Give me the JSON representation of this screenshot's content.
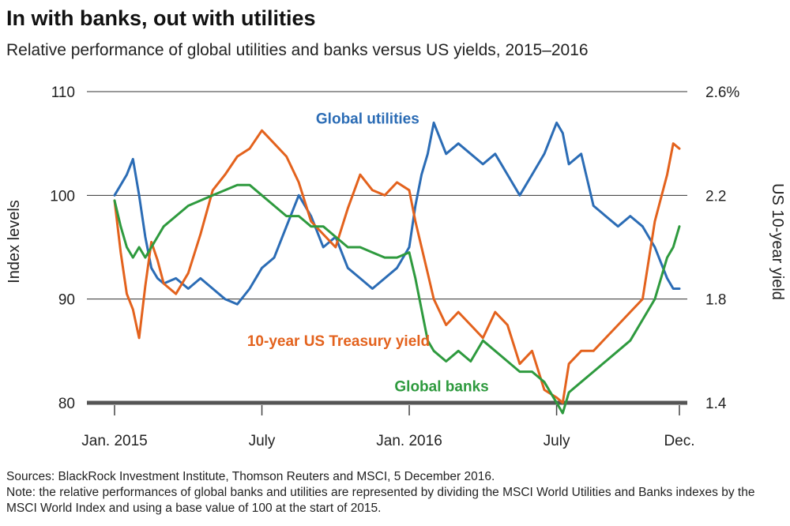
{
  "chart_data": {
    "type": "line",
    "title": "In with banks, out with utilities",
    "subtitle": "Relative performance of global utilities and banks versus US yields, 2015–2016",
    "ylabel": "Index levels",
    "ylabel_right": "US 10-year yield",
    "ylim": [
      80,
      110
    ],
    "ylim_right": [
      1.4,
      2.6
    ],
    "y_ticks": [
      "110",
      "100",
      "90",
      "80"
    ],
    "y_ticks_right": [
      "2.6%",
      "2.2",
      "1.8",
      "1.4"
    ],
    "x_ticks": [
      "Jan. 2015",
      "July",
      "Jan. 2016",
      "July",
      "Dec."
    ],
    "x_tick_values": [
      0,
      6,
      12,
      18,
      23
    ],
    "x_unit": "month index from Jan. 2015",
    "series": [
      {
        "name": "Global utilities",
        "axis": "left",
        "color": "#2b6cb5",
        "x": [
          0,
          0.25,
          0.5,
          0.75,
          1,
          1.25,
          1.5,
          1.75,
          2,
          2.5,
          3,
          3.5,
          4,
          4.5,
          5,
          5.5,
          6,
          6.5,
          7,
          7.5,
          8,
          8.5,
          9,
          9.5,
          10,
          10.5,
          11,
          11.5,
          12,
          12.25,
          12.5,
          12.75,
          13,
          13.5,
          14,
          14.5,
          15,
          15.5,
          16,
          16.5,
          17,
          17.5,
          18,
          18.25,
          18.5,
          19,
          19.5,
          20,
          20.5,
          21,
          21.5,
          22,
          22.5,
          22.75,
          23
        ],
        "y": [
          100,
          101,
          102,
          103.5,
          100,
          96,
          93,
          92,
          91.5,
          92,
          91,
          92,
          91,
          90,
          89.5,
          91,
          93,
          94,
          97,
          100,
          98,
          95,
          96,
          93,
          92,
          91,
          92,
          93,
          95,
          99,
          102,
          104,
          107,
          104,
          105,
          104,
          103,
          104,
          102,
          100,
          102,
          104,
          107,
          106,
          103,
          104,
          99,
          98,
          97,
          98,
          97,
          95,
          92,
          91,
          91
        ],
        "label_pos": [
          8.2,
          106.9
        ]
      },
      {
        "name": "10-year US Treasury yield",
        "axis": "right",
        "color": "#e3621d",
        "x": [
          0,
          0.25,
          0.5,
          0.75,
          1,
          1.25,
          1.5,
          1.75,
          2,
          2.5,
          3,
          3.5,
          4,
          4.5,
          5,
          5.5,
          6,
          6.5,
          7,
          7.5,
          8,
          8.5,
          9,
          9.5,
          10,
          10.5,
          11,
          11.5,
          12,
          12.25,
          12.5,
          12.75,
          13,
          13.5,
          14,
          14.5,
          15,
          15.5,
          16,
          16.5,
          17,
          17.5,
          18,
          18.25,
          18.5,
          19,
          19.5,
          20,
          20.5,
          21,
          21.5,
          22,
          22.5,
          22.75,
          23
        ],
        "y": [
          2.18,
          1.98,
          1.82,
          1.76,
          1.65,
          1.85,
          2.02,
          1.95,
          1.86,
          1.82,
          1.9,
          2.05,
          2.22,
          2.28,
          2.35,
          2.38,
          2.45,
          2.4,
          2.35,
          2.25,
          2.1,
          2.05,
          2.0,
          2.15,
          2.28,
          2.22,
          2.2,
          2.25,
          2.22,
          2.1,
          2.0,
          1.9,
          1.8,
          1.7,
          1.75,
          1.7,
          1.65,
          1.75,
          1.7,
          1.55,
          1.6,
          1.45,
          1.42,
          1.4,
          1.55,
          1.6,
          1.6,
          1.65,
          1.7,
          1.75,
          1.8,
          2.1,
          2.28,
          2.4,
          2.38
        ],
        "label_pos": [
          5.4,
          1.62
        ]
      },
      {
        "name": "Global banks",
        "axis": "left",
        "color": "#2e9a3e",
        "x": [
          0,
          0.25,
          0.5,
          0.75,
          1,
          1.25,
          1.5,
          1.75,
          2,
          2.5,
          3,
          3.5,
          4,
          4.5,
          5,
          5.5,
          6,
          6.5,
          7,
          7.5,
          8,
          8.5,
          9,
          9.5,
          10,
          10.5,
          11,
          11.5,
          12,
          12.25,
          12.5,
          12.75,
          13,
          13.5,
          14,
          14.5,
          15,
          15.5,
          16,
          16.5,
          17,
          17.5,
          18,
          18.25,
          18.5,
          19,
          19.5,
          20,
          20.5,
          21,
          21.5,
          22,
          22.5,
          22.75,
          23
        ],
        "y": [
          99.5,
          97,
          95,
          94,
          95,
          94,
          95,
          96,
          97,
          98,
          99,
          99.5,
          100,
          100.5,
          101,
          101,
          100,
          99,
          98,
          98,
          97,
          97,
          96,
          95,
          95,
          94.5,
          94,
          94,
          94.5,
          92,
          89,
          86,
          85,
          84,
          85,
          84,
          86,
          85,
          84,
          83,
          83,
          82,
          80,
          79,
          81,
          82,
          83,
          84,
          85,
          86,
          88,
          90,
          94,
          95,
          97
        ],
        "label_pos": [
          11.4,
          81.1
        ]
      }
    ],
    "grid": true,
    "legend": "inline labels"
  },
  "footer": {
    "sources": "Sources: BlackRock Investment Institute, Thomson Reuters and MSCI, 5 December 2016.",
    "note": "Note: the relative performances of global banks and utilities are represented by dividing the MSCI World Utilities and Banks indexes by the MSCI World Index and using a base value of 100 at the start of 2015."
  }
}
